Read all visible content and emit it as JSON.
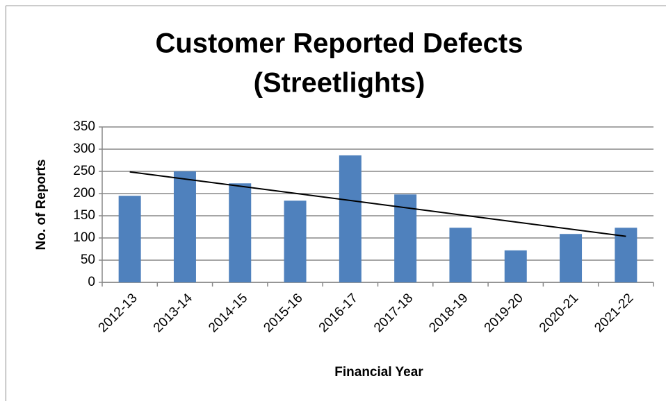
{
  "chart_data": {
    "type": "bar",
    "title": [
      "Customer Reported Defects",
      "(Streetlights)"
    ],
    "x_label": "Financial Year",
    "y_label": "No. of Reports",
    "categories": [
      "2012-13",
      "2013-14",
      "2014-15",
      "2015-16",
      "2016-17",
      "2017-18",
      "2018-19",
      "2019-20",
      "2020-21",
      "2021-22"
    ],
    "values": [
      195,
      250,
      223,
      184,
      286,
      198,
      123,
      72,
      109,
      123
    ],
    "color": "#4f81bd",
    "ylim": [
      0,
      350
    ],
    "yticks": [
      0,
      50,
      100,
      150,
      200,
      250,
      300,
      350
    ],
    "grid": true,
    "trendline": true,
    "trendline_color": "#000000"
  }
}
